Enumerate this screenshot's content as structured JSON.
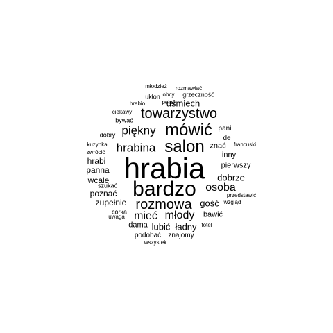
{
  "text_color": "#000000",
  "background_color": "#ffffff",
  "words": [
    {
      "id": "hrabia",
      "text": "hrabia"
    },
    {
      "id": "bardzo",
      "text": "bardzo"
    },
    {
      "id": "mowic",
      "text": "mówić"
    },
    {
      "id": "salon",
      "text": "salon"
    },
    {
      "id": "towarzystwo",
      "text": "towarzystwo"
    },
    {
      "id": "rozmowa",
      "text": "rozmowa"
    },
    {
      "id": "hrabina",
      "text": "hrabina"
    },
    {
      "id": "piekny",
      "text": "piękny"
    },
    {
      "id": "miec",
      "text": "mieć"
    },
    {
      "id": "mlody",
      "text": "młody"
    },
    {
      "id": "osoba",
      "text": "osoba"
    },
    {
      "id": "usmiech",
      "text": "uśmiech"
    },
    {
      "id": "gosc",
      "text": "gość"
    },
    {
      "id": "lubic",
      "text": "lubić"
    },
    {
      "id": "ladny",
      "text": "ładny"
    },
    {
      "id": "pierwszy",
      "text": "pierwszy"
    },
    {
      "id": "dobrze",
      "text": "dobrze"
    },
    {
      "id": "hrabi",
      "text": "hrabi"
    },
    {
      "id": "panna",
      "text": "panna"
    },
    {
      "id": "wcale",
      "text": "wcale"
    },
    {
      "id": "poznac",
      "text": "poznać"
    },
    {
      "id": "zupelnie",
      "text": "zupełnie"
    },
    {
      "id": "dama",
      "text": "dama"
    },
    {
      "id": "inny",
      "text": "inny"
    },
    {
      "id": "znac",
      "text": "znać"
    },
    {
      "id": "bawic",
      "text": "bawić"
    },
    {
      "id": "podobac",
      "text": "podobać"
    },
    {
      "id": "znajomy",
      "text": "znajomy"
    },
    {
      "id": "pani",
      "text": "pani"
    },
    {
      "id": "de",
      "text": "de"
    },
    {
      "id": "bywac",
      "text": "bywać"
    },
    {
      "id": "dobry",
      "text": "dobry"
    },
    {
      "id": "corka",
      "text": "córka"
    },
    {
      "id": "szukac",
      "text": "szukać"
    },
    {
      "id": "przedstawic",
      "text": "przedstawić"
    },
    {
      "id": "uwaga",
      "text": "uwaga"
    },
    {
      "id": "wzglad",
      "text": "wzgląd"
    },
    {
      "id": "fotel",
      "text": "fotel"
    },
    {
      "id": "wszystek",
      "text": "wszystek"
    },
    {
      "id": "francuski",
      "text": "francuski"
    },
    {
      "id": "kuzynka",
      "text": "kuzynka"
    },
    {
      "id": "zwrocic",
      "text": "zwrócić"
    },
    {
      "id": "ciekawy",
      "text": "ciekawy"
    },
    {
      "id": "hrabio",
      "text": "hrabio"
    },
    {
      "id": "pelny",
      "text": "pełny"
    },
    {
      "id": "uklon",
      "text": "ukłon"
    },
    {
      "id": "obcy",
      "text": "obcy"
    },
    {
      "id": "grzecznosc",
      "text": "grzeczność"
    },
    {
      "id": "rozmawiac",
      "text": "rozmawiać"
    },
    {
      "id": "mlodziez",
      "text": "młodzież"
    }
  ]
}
